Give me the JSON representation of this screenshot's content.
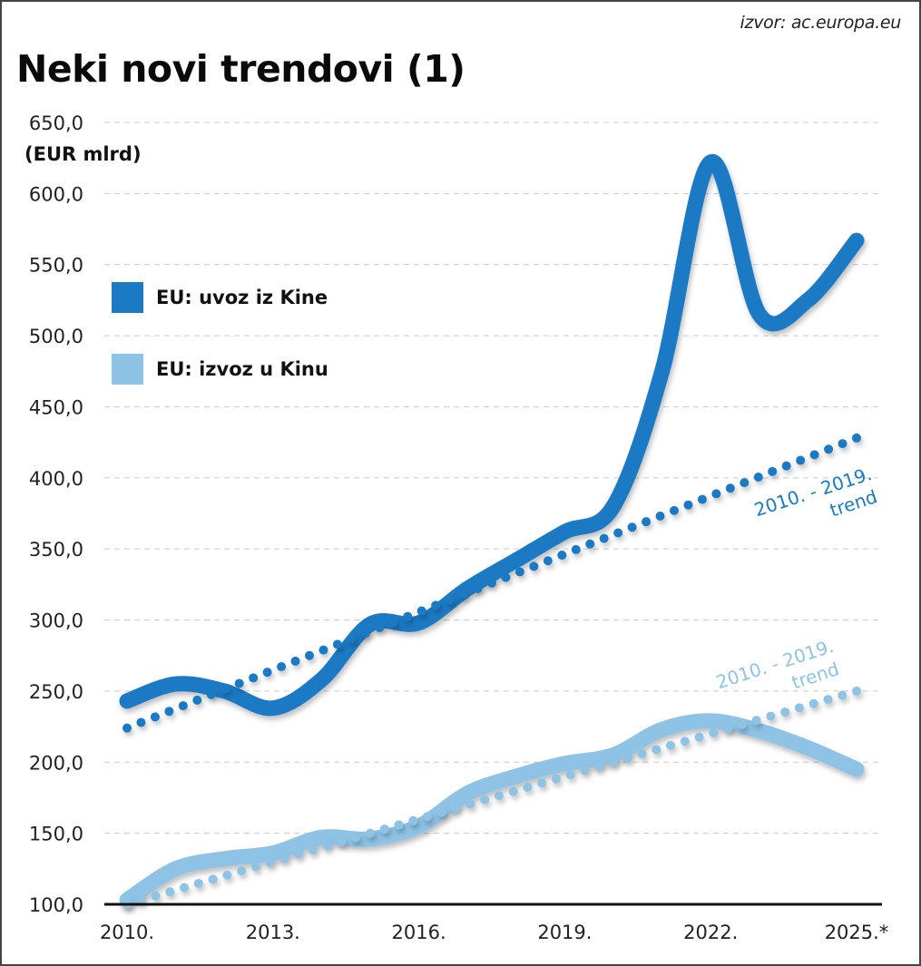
{
  "source": "izvor: ac.europa.eu",
  "title": "Neki novi trendovi (1)",
  "unit_label": "(EUR mlrd)",
  "colors": {
    "imports": "#1a7ac4",
    "exports": "#8ec3e6",
    "axis": "#111111",
    "grid": "#cccccc"
  },
  "legend": [
    {
      "label": "EU: uvoz iz Kine",
      "color": "#1a7ac4"
    },
    {
      "label": "EU: izvoz u Kinu",
      "color": "#8ec3e6"
    }
  ],
  "annotations": {
    "imports_trend": {
      "line1": "2010. - 2019.",
      "line2": "trend"
    },
    "exports_trend": {
      "line1": "2010. - 2019.",
      "line2": "trend"
    }
  },
  "chart_data": {
    "type": "line",
    "title": "Neki novi trendovi (1)",
    "xlabel": "",
    "ylabel": "(EUR mlrd)",
    "ylim": [
      100,
      650
    ],
    "yticks": [
      100,
      150,
      200,
      250,
      300,
      350,
      400,
      450,
      500,
      550,
      600,
      650
    ],
    "ytick_labels": [
      "100,0",
      "150,0",
      "200,0",
      "250,0",
      "300,0",
      "350,0",
      "400,0",
      "450,0",
      "500,0",
      "550,0",
      "600,0",
      "650,0"
    ],
    "xlim": [
      2010,
      2025
    ],
    "xticks": [
      2010,
      2013,
      2016,
      2019,
      2022,
      2025
    ],
    "xtick_labels": [
      "2010.",
      "2013.",
      "2016.",
      "2019.",
      "2022.",
      "2025.*"
    ],
    "grid": true,
    "legend_position": "left",
    "x": [
      2010,
      2011,
      2012,
      2013,
      2014,
      2015,
      2016,
      2017,
      2018,
      2019,
      2020,
      2021,
      2022,
      2023,
      2024,
      2025
    ],
    "series": [
      {
        "name": "EU: uvoz iz Kine",
        "style": "solid",
        "values": [
          243,
          255,
          250,
          238,
          258,
          297,
          298,
          322,
          342,
          362,
          380,
          475,
          622,
          515,
          525,
          567
        ]
      },
      {
        "name": "EU: izvoz u Kinu",
        "style": "solid",
        "values": [
          103,
          125,
          132,
          136,
          147,
          146,
          155,
          178,
          190,
          199,
          205,
          223,
          229,
          222,
          210,
          195
        ]
      },
      {
        "name": "EU: uvoz iz Kine 2010. - 2019. trend",
        "style": "dotted",
        "x": [
          2010,
          2025
        ],
        "values": [
          224,
          428
        ]
      },
      {
        "name": "EU: izvoz u Kinu 2010. - 2019. trend",
        "style": "dotted",
        "x": [
          2010,
          2025
        ],
        "values": [
          100,
          250
        ]
      }
    ]
  }
}
